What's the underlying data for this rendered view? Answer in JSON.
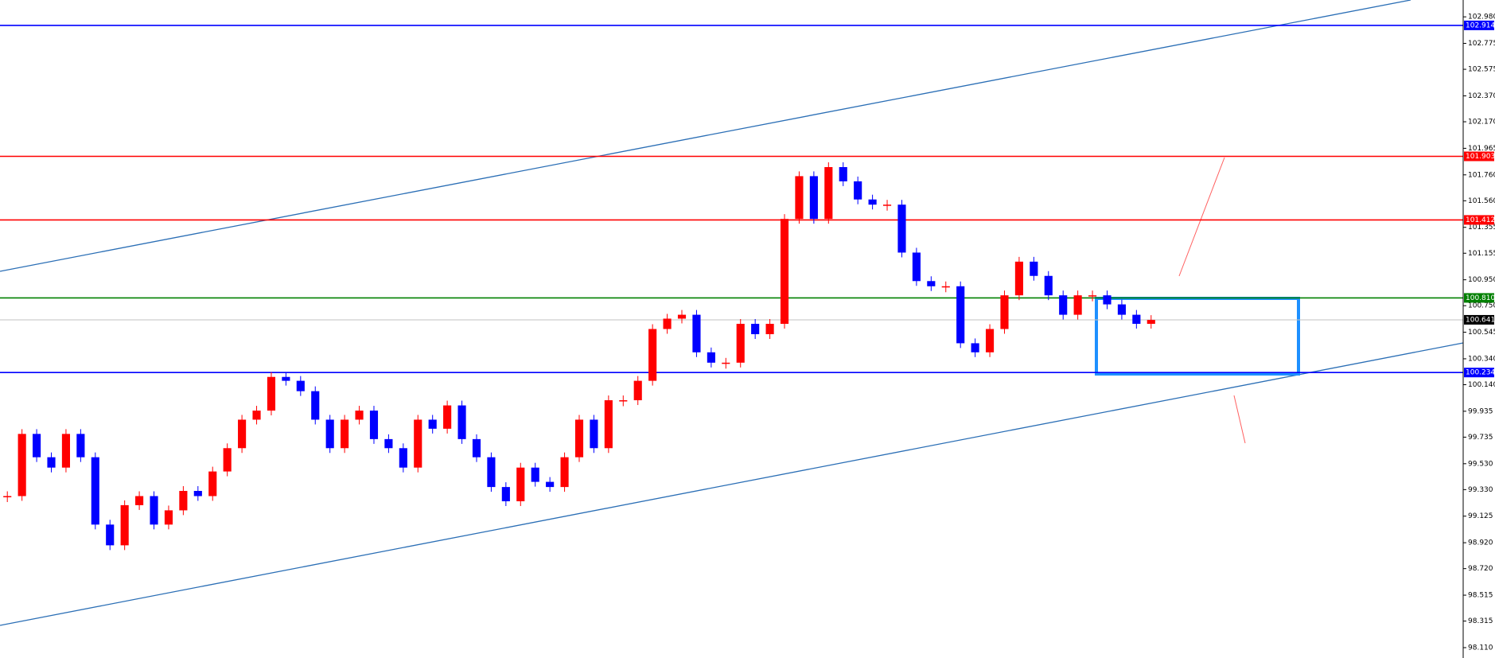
{
  "chart_data": {
    "type": "candlestick",
    "closes": [
      99.28,
      99.76,
      99.58,
      99.5,
      99.76,
      99.58,
      99.06,
      98.9,
      99.21,
      99.28,
      99.06,
      99.17,
      99.32,
      99.28,
      99.47,
      99.65,
      99.87,
      99.94,
      100.2,
      100.17,
      100.09,
      99.87,
      99.65,
      99.87,
      99.94,
      99.72,
      99.65,
      99.5,
      99.87,
      99.8,
      99.98,
      99.72,
      99.58,
      99.35,
      99.24,
      99.5,
      99.39,
      99.35,
      99.58,
      99.87,
      99.65,
      100.02,
      100.02,
      100.17,
      100.57,
      100.65,
      100.68,
      100.39,
      100.31,
      100.31,
      100.61,
      100.53,
      100.61,
      101.42,
      101.75,
      101.42,
      101.82,
      101.71,
      101.57,
      101.53,
      101.53,
      101.16,
      100.94,
      100.9,
      100.9,
      100.46,
      100.39,
      100.57,
      100.83,
      101.09,
      100.98,
      100.83,
      100.68,
      100.83,
      100.83,
      100.76,
      100.68,
      100.61,
      100.64
    ],
    "up_color": "#ff0000",
    "down_color": "#0000ff",
    "ylim": [
      98.03,
      103.11
    ],
    "yticks": [
      {
        "value": 102.98,
        "label": "102.980"
      },
      102.775,
      102.575,
      {
        "value": 102.37,
        "label": "102.370"
      },
      {
        "value": 102.17,
        "label": "102.170"
      },
      101.965,
      {
        "value": 101.76,
        "label": "101.760"
      },
      {
        "value": 101.56,
        "label": "101.560"
      },
      101.355,
      101.155,
      {
        "value": 100.95,
        "label": "100.950"
      },
      {
        "value": 100.75,
        "label": "100.750"
      },
      100.545,
      {
        "value": 100.34,
        "label": "100.340"
      },
      {
        "value": 100.14,
        "label": "100.140"
      },
      99.935,
      99.735,
      {
        "value": 99.53,
        "label": "99.530"
      },
      {
        "value": 99.33,
        "label": "99.330"
      },
      99.125,
      {
        "value": 98.92,
        "label": "98.920"
      },
      {
        "value": 98.72,
        "label": "98.720"
      },
      98.515,
      98.315,
      {
        "value": 98.11,
        "label": "98.110"
      }
    ],
    "levels": [
      {
        "value": 102.914,
        "label": "102.914",
        "color": "#0000ff"
      },
      {
        "value": 101.903,
        "label": "101.903",
        "color": "#ff0000"
      },
      {
        "value": 101.412,
        "label": "101.412",
        "color": "#ff0000"
      },
      {
        "value": 100.81,
        "label": "100.810",
        "color": "#008000"
      },
      {
        "value": 100.641,
        "label": "100.641",
        "color": "#c0c0c0"
      },
      {
        "value": 100.234,
        "label": "100.234",
        "color": "#0000ff"
      }
    ]
  }
}
